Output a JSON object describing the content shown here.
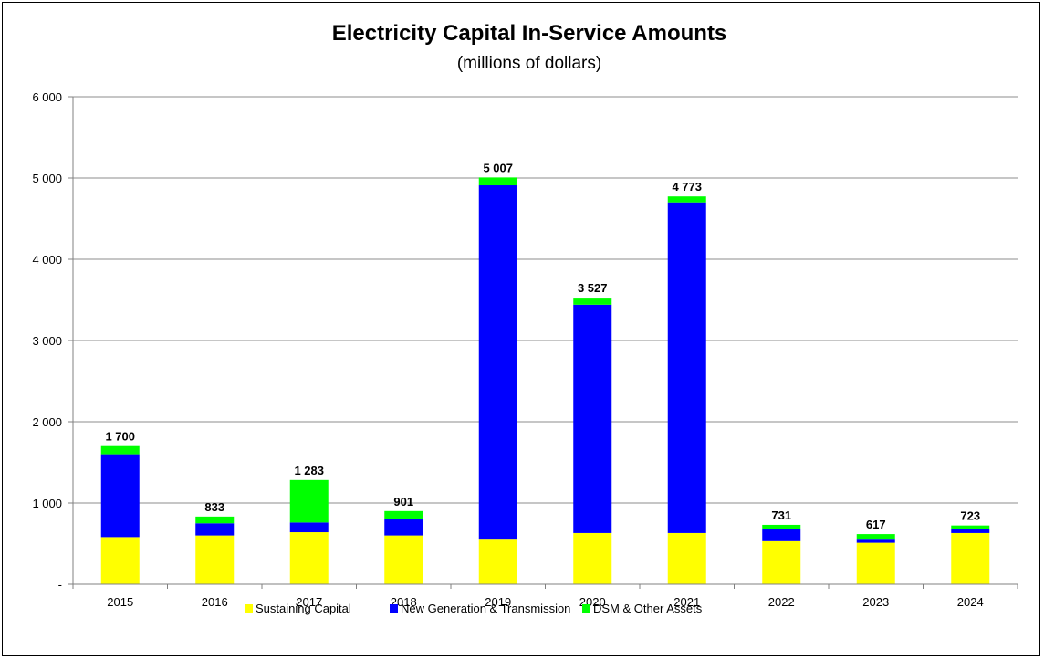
{
  "chart_data": {
    "type": "bar",
    "stacked": true,
    "title": "Electricity Capital In-Service Amounts",
    "subtitle": "(millions of dollars)",
    "xlabel": "",
    "ylabel": "",
    "ylim": [
      0,
      6000
    ],
    "yticks": [
      0,
      1000,
      2000,
      3000,
      4000,
      5000,
      6000
    ],
    "ytick_labels": [
      "-",
      "1 000",
      "2 000",
      "3 000",
      "4 000",
      "5 000",
      "6 000"
    ],
    "grid": true,
    "legend_position": "bottom",
    "categories": [
      "2015",
      "2016",
      "2017",
      "2018",
      "2019",
      "2020",
      "2021",
      "2022",
      "2023",
      "2024"
    ],
    "series": [
      {
        "name": "Sustaining Capital",
        "color": "#FFFF00",
        "values": [
          580,
          600,
          640,
          600,
          560,
          630,
          630,
          530,
          510,
          630
        ]
      },
      {
        "name": "New Generation & Transmission",
        "color": "#0000FF",
        "values": [
          1020,
          150,
          120,
          200,
          4350,
          2810,
          4070,
          150,
          50,
          50
        ]
      },
      {
        "name": "DSM & Other Assets",
        "color": "#00FF00",
        "values": [
          100,
          83,
          523,
          101,
          97,
          87,
          73,
          51,
          57,
          43
        ]
      }
    ],
    "totals": [
      1700,
      833,
      1283,
      901,
      5007,
      3527,
      4773,
      731,
      617,
      723
    ],
    "total_labels": [
      "1 700",
      "833",
      "1 283",
      "901",
      "5 007",
      "3 527",
      "4 773",
      "731",
      "617",
      "723"
    ]
  }
}
